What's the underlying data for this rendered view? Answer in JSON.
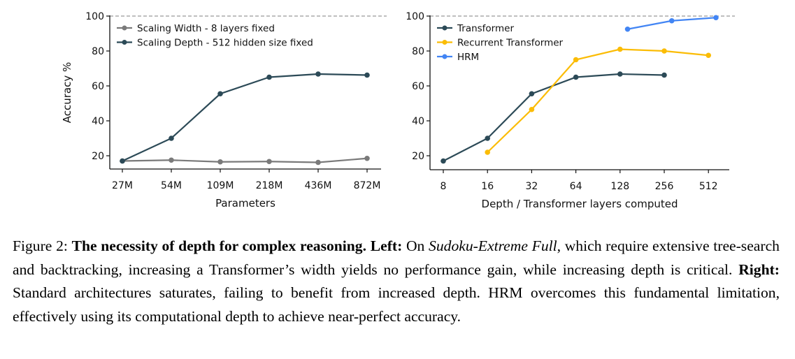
{
  "chart_data": [
    {
      "type": "line",
      "xlabel": "Parameters",
      "ylabel": "Accuracy %",
      "categories": [
        "27M",
        "54M",
        "109M",
        "218M",
        "436M",
        "872M"
      ],
      "ylim": [
        12,
        100
      ],
      "yticks": [
        20,
        40,
        60,
        80,
        100
      ],
      "reference_line": 100,
      "grid": false,
      "legend": "top-left",
      "series": [
        {
          "name": "Scaling Width - 8 layers fixed",
          "color": "#7a7a7a",
          "values": [
            17.0,
            17.5,
            16.5,
            16.7,
            16.2,
            18.5
          ]
        },
        {
          "name": "Scaling Depth - 512 hidden size fixed",
          "color": "#2c4a57",
          "values": [
            17.0,
            30.0,
            55.5,
            65.0,
            66.8,
            66.2
          ]
        }
      ]
    },
    {
      "type": "line",
      "xlabel": "Depth / Transformer layers computed",
      "ylabel": "",
      "xscale": "log2",
      "xticks": [
        8,
        16,
        32,
        64,
        128,
        256,
        512
      ],
      "ylim": [
        12,
        100
      ],
      "yticks": [
        20,
        40,
        60,
        80,
        100
      ],
      "reference_line": 100,
      "grid": false,
      "legend": "top-left",
      "series": [
        {
          "name": "Transformer",
          "color": "#2c4a57",
          "x": [
            8,
            16,
            32,
            64,
            128,
            256
          ],
          "values": [
            17.0,
            30.0,
            55.5,
            65.0,
            66.8,
            66.2
          ]
        },
        {
          "name": "Recurrent Transformer",
          "color": "#fbbc05",
          "x": [
            16,
            32,
            64,
            128,
            256,
            512
          ],
          "values": [
            22.0,
            46.5,
            75.0,
            81.0,
            80.0,
            77.5
          ]
        },
        {
          "name": "HRM",
          "color": "#4285f4",
          "x": [
            144,
            288,
            576
          ],
          "values": [
            92.5,
            97.3,
            99.1
          ]
        }
      ]
    }
  ],
  "caption": {
    "label": "Figure 2: ",
    "title": "The necessity of depth for complex reasoning.",
    "left_label": "Left:",
    "left_text_1": " On ",
    "left_italic": "Sudoku-Extreme Full",
    "left_text_2": ", which require extensive tree-search and backtracking, increasing a Transformer’s width yields no performance gain, while increasing depth is critical. ",
    "right_label": "Right:",
    "right_text": " Standard architectures saturates, failing to benefit from increased depth. HRM overcomes this fundamental limitation, effectively using its computational depth to achieve near-perfect accuracy."
  }
}
